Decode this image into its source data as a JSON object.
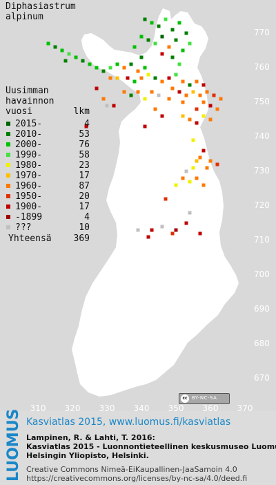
{
  "species_name": [
    "Diphasiastrum",
    "alpinum"
  ],
  "legend": {
    "heading": [
      "Uusimman",
      "havainnon"
    ],
    "col_year": "vuosi",
    "col_count": "lkm",
    "rows": [
      {
        "period": "2015-",
        "count": "4",
        "color": "#006400"
      },
      {
        "period": "2010-",
        "count": "53",
        "color": "#008000"
      },
      {
        "period": "2000-",
        "count": "76",
        "color": "#00c000"
      },
      {
        "period": "1990-",
        "count": "58",
        "color": "#44e044"
      },
      {
        "period": "1980-",
        "count": "23",
        "color": "#f0f000"
      },
      {
        "period": "1970-",
        "count": "17",
        "color": "#ffc000"
      },
      {
        "period": "1960-",
        "count": "87",
        "color": "#ff7800"
      },
      {
        "period": "1950-",
        "count": "20",
        "color": "#e03000"
      },
      {
        "period": "1900-",
        "count": "17",
        "color": "#c00000"
      },
      {
        "period": "-1899",
        "count": "4",
        "color": "#a00000"
      },
      {
        "period": "???",
        "count": "10",
        "color": "#c0c0c0"
      }
    ],
    "total_label": "Yhteensä",
    "total_value": "369"
  },
  "map": {
    "y_ticks": [
      "770",
      "760",
      "750",
      "740",
      "730",
      "720",
      "710",
      "700",
      "690",
      "680",
      "670"
    ],
    "x_ticks": [
      "310",
      "320",
      "330",
      "340",
      "350",
      "360",
      "370"
    ],
    "land_color": "#ffffff",
    "background_color": "#d9d9d9",
    "observation_points": [
      {
        "e": 341,
        "n": 774,
        "color": "#008000"
      },
      {
        "e": 343,
        "n": 773,
        "color": "#00c000"
      },
      {
        "e": 345,
        "n": 772,
        "color": "#008000"
      },
      {
        "e": 347,
        "n": 774,
        "color": "#44e044"
      },
      {
        "e": 349,
        "n": 771,
        "color": "#008000"
      },
      {
        "e": 351,
        "n": 773,
        "color": "#00c000"
      },
      {
        "e": 353,
        "n": 770,
        "color": "#008000"
      },
      {
        "e": 340,
        "n": 769,
        "color": "#00c000"
      },
      {
        "e": 342,
        "n": 768,
        "color": "#008000"
      },
      {
        "e": 344,
        "n": 767,
        "color": "#44e044"
      },
      {
        "e": 346,
        "n": 769,
        "color": "#006400"
      },
      {
        "e": 348,
        "n": 766,
        "color": "#ff7800"
      },
      {
        "e": 350,
        "n": 768,
        "color": "#008000"
      },
      {
        "e": 352,
        "n": 765,
        "color": "#00c000"
      },
      {
        "e": 354,
        "n": 767,
        "color": "#44e044"
      },
      {
        "e": 346,
        "n": 764,
        "color": "#c00000"
      },
      {
        "e": 349,
        "n": 763,
        "color": "#008000"
      },
      {
        "e": 351,
        "n": 761,
        "color": "#44e044"
      },
      {
        "e": 338,
        "n": 766,
        "color": "#00c000"
      },
      {
        "e": 340,
        "n": 763,
        "color": "#008000"
      },
      {
        "e": 313,
        "n": 767,
        "color": "#00c000"
      },
      {
        "e": 315,
        "n": 766,
        "color": "#008000"
      },
      {
        "e": 317,
        "n": 765,
        "color": "#00c000"
      },
      {
        "e": 319,
        "n": 764,
        "color": "#44e044"
      },
      {
        "e": 321,
        "n": 763,
        "color": "#00c000"
      },
      {
        "e": 323,
        "n": 762,
        "color": "#008000"
      },
      {
        "e": 325,
        "n": 761,
        "color": "#00c000"
      },
      {
        "e": 318,
        "n": 762,
        "color": "#008000"
      },
      {
        "e": 327,
        "n": 760,
        "color": "#00c000"
      },
      {
        "e": 329,
        "n": 759,
        "color": "#008000"
      },
      {
        "e": 331,
        "n": 760,
        "color": "#44e044"
      },
      {
        "e": 333,
        "n": 761,
        "color": "#00c000"
      },
      {
        "e": 335,
        "n": 760,
        "color": "#ff7800"
      },
      {
        "e": 337,
        "n": 761,
        "color": "#008000"
      },
      {
        "e": 339,
        "n": 759,
        "color": "#ff7800"
      },
      {
        "e": 341,
        "n": 760,
        "color": "#00c000"
      },
      {
        "e": 331,
        "n": 757,
        "color": "#ff7800"
      },
      {
        "e": 333,
        "n": 757,
        "color": "#ffc000"
      },
      {
        "e": 336,
        "n": 757,
        "color": "#c00000"
      },
      {
        "e": 338,
        "n": 756,
        "color": "#00c000"
      },
      {
        "e": 340,
        "n": 757,
        "color": "#ff7800"
      },
      {
        "e": 342,
        "n": 758,
        "color": "#f0f000"
      },
      {
        "e": 344,
        "n": 757,
        "color": "#008000"
      },
      {
        "e": 346,
        "n": 756,
        "color": "#ff7800"
      },
      {
        "e": 348,
        "n": 757,
        "color": "#c00000"
      },
      {
        "e": 350,
        "n": 758,
        "color": "#44e044"
      },
      {
        "e": 352,
        "n": 756,
        "color": "#ff7800"
      },
      {
        "e": 354,
        "n": 755,
        "color": "#008000"
      },
      {
        "e": 356,
        "n": 756,
        "color": "#ff7800"
      },
      {
        "e": 358,
        "n": 755,
        "color": "#c00000"
      },
      {
        "e": 349,
        "n": 754,
        "color": "#ff7800"
      },
      {
        "e": 351,
        "n": 753,
        "color": "#c00000"
      },
      {
        "e": 353,
        "n": 752,
        "color": "#ff7800"
      },
      {
        "e": 355,
        "n": 753,
        "color": "#ffc000"
      },
      {
        "e": 357,
        "n": 752,
        "color": "#ff7800"
      },
      {
        "e": 359,
        "n": 753,
        "color": "#ff7800"
      },
      {
        "e": 361,
        "n": 752,
        "color": "#e03000"
      },
      {
        "e": 363,
        "n": 751,
        "color": "#ff7800"
      },
      {
        "e": 358,
        "n": 750,
        "color": "#ff7800"
      },
      {
        "e": 360,
        "n": 749,
        "color": "#c00000"
      },
      {
        "e": 362,
        "n": 748,
        "color": "#ff7800"
      },
      {
        "e": 356,
        "n": 748,
        "color": "#e03000"
      },
      {
        "e": 352,
        "n": 750,
        "color": "#ff7800"
      },
      {
        "e": 348,
        "n": 751,
        "color": "#ff7800"
      },
      {
        "e": 345,
        "n": 752,
        "color": "#c0c0c0"
      },
      {
        "e": 343,
        "n": 753,
        "color": "#ff7800"
      },
      {
        "e": 341,
        "n": 751,
        "color": "#f0f000"
      },
      {
        "e": 339,
        "n": 753,
        "color": "#ff7800"
      },
      {
        "e": 337,
        "n": 752,
        "color": "#008000"
      },
      {
        "e": 335,
        "n": 753,
        "color": "#ff7800"
      },
      {
        "e": 344,
        "n": 748,
        "color": "#ff7800"
      },
      {
        "e": 346,
        "n": 746,
        "color": "#c00000"
      },
      {
        "e": 352,
        "n": 746,
        "color": "#ffc000"
      },
      {
        "e": 354,
        "n": 745,
        "color": "#ff7800"
      },
      {
        "e": 356,
        "n": 744,
        "color": "#c00000"
      },
      {
        "e": 358,
        "n": 746,
        "color": "#f0f000"
      },
      {
        "e": 360,
        "n": 745,
        "color": "#ff7800"
      },
      {
        "e": 327,
        "n": 754,
        "color": "#c00000"
      },
      {
        "e": 329,
        "n": 751,
        "color": "#ff7800"
      },
      {
        "e": 330,
        "n": 749,
        "color": "#c0c0c0"
      },
      {
        "e": 332,
        "n": 749,
        "color": "#c00000"
      },
      {
        "e": 324,
        "n": 743,
        "color": "#c00000"
      },
      {
        "e": 341,
        "n": 743,
        "color": "#c00000"
      },
      {
        "e": 355,
        "n": 739,
        "color": "#f0f000"
      },
      {
        "e": 358,
        "n": 736,
        "color": "#c00000"
      },
      {
        "e": 357,
        "n": 734,
        "color": "#ff7800"
      },
      {
        "e": 356,
        "n": 733,
        "color": "#ffc000"
      },
      {
        "e": 360,
        "n": 733,
        "color": "#ff7800"
      },
      {
        "e": 362,
        "n": 732,
        "color": "#e03000"
      },
      {
        "e": 355,
        "n": 731,
        "color": "#f0f000"
      },
      {
        "e": 359,
        "n": 731,
        "color": "#ff7800"
      },
      {
        "e": 353,
        "n": 730,
        "color": "#c0c0c0"
      },
      {
        "e": 352,
        "n": 728,
        "color": "#ff7800"
      },
      {
        "e": 354,
        "n": 727,
        "color": "#f0f000"
      },
      {
        "e": 356,
        "n": 728,
        "color": "#ff7800"
      },
      {
        "e": 350,
        "n": 726,
        "color": "#f0f000"
      },
      {
        "e": 358,
        "n": 726,
        "color": "#ff7800"
      },
      {
        "e": 347,
        "n": 722,
        "color": "#e03000"
      },
      {
        "e": 354,
        "n": 718,
        "color": "#c0c0c0"
      },
      {
        "e": 353,
        "n": 715,
        "color": "#c00000"
      },
      {
        "e": 350,
        "n": 713,
        "color": "#a00000"
      },
      {
        "e": 346,
        "n": 714,
        "color": "#c0c0c0"
      },
      {
        "e": 349,
        "n": 712,
        "color": "#e03000"
      },
      {
        "e": 357,
        "n": 712,
        "color": "#c00000"
      },
      {
        "e": 339,
        "n": 713,
        "color": "#c0c0c0"
      },
      {
        "e": 342,
        "n": 711,
        "color": "#c00000"
      },
      {
        "e": 343,
        "n": 713,
        "color": "#c00000"
      }
    ]
  },
  "license_badge": {
    "cc": "cc",
    "terms": "BY-NC-SA"
  },
  "footer": {
    "logo": "LUOMUS",
    "atlas_line": "Kasviatlas 2015, www.luomus.fi/kasviatlas",
    "reference": [
      "Lampinen, R. & Lahti, T. 2016:",
      "Kasviatlas 2015 - Luonnontieteellinen keskusmuseo Luomus,",
      "Helsingin Yliopisto, Helsinki."
    ],
    "license": [
      "Creative Commons Nimeä-EiKaupallinen-JaaSamoin 4.0",
      "https://creativecommons.org/licenses/by-nc-sa/4.0/deed.fi"
    ]
  }
}
